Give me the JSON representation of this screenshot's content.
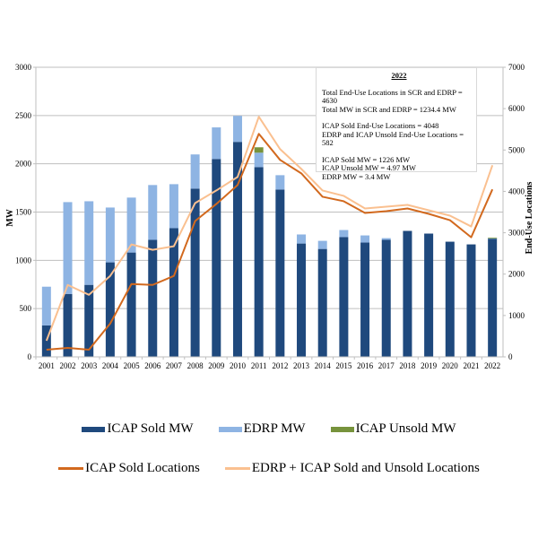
{
  "chart_data": {
    "type": "bar",
    "title": "",
    "categories": [
      "2001",
      "2002",
      "2003",
      "2004",
      "2005",
      "2006",
      "2007",
      "2008",
      "2009",
      "2010",
      "2011",
      "2012",
      "2013",
      "2014",
      "2015",
      "2016",
      "2017",
      "2018",
      "2019",
      "2020",
      "2021",
      "2022"
    ],
    "ylabel": "MW",
    "y2label": "End-Use Locations",
    "ylim": [
      0,
      3000
    ],
    "y2lim": [
      0,
      7000
    ],
    "yticks": [
      0,
      500,
      1000,
      1500,
      2000,
      2500,
      3000
    ],
    "y2ticks": [
      0,
      1000,
      2000,
      3000,
      4000,
      5000,
      6000,
      7000
    ],
    "grid": true,
    "stacked_bars": [
      {
        "name": "ICAP Sold MW",
        "color": "#1f497d",
        "values": [
          326,
          652,
          746,
          979,
          1081,
          1212,
          1333,
          1743,
          2050,
          2227,
          1966,
          1733,
          1174,
          1118,
          1240,
          1184,
          1212,
          1305,
          1277,
          1193,
          1165,
          1226
        ]
      },
      {
        "name": "EDRP MW",
        "color": "#8eb4e3",
        "values": [
          401,
          951,
          866,
          568,
          569,
          568,
          456,
          354,
          327,
          270,
          149,
          149,
          94,
          84,
          74,
          74,
          18,
          0,
          0,
          0,
          0,
          3.4
        ]
      },
      {
        "name": "ICAP Unsold MW",
        "color": "#77933c",
        "values": [
          0,
          0,
          0,
          0,
          0,
          0,
          0,
          0,
          0,
          0,
          56,
          0,
          0,
          0,
          0,
          0,
          0,
          0,
          0,
          0,
          0,
          4.97
        ]
      }
    ],
    "lines": [
      {
        "name": "ICAP Sold Locations",
        "axis": "right",
        "color": "#d2691e",
        "values": [
          174,
          217,
          174,
          804,
          1761,
          1739,
          1957,
          3283,
          3696,
          4152,
          5391,
          4761,
          4435,
          3870,
          3761,
          3478,
          3522,
          3587,
          3457,
          3304,
          2891,
          4048
        ]
      },
      {
        "name": "EDRP + ICAP Sold and Unsold Locations",
        "axis": "right",
        "color": "#fac090",
        "values": [
          391,
          1739,
          1500,
          1957,
          2717,
          2587,
          2674,
          3717,
          4022,
          4348,
          5804,
          5022,
          4543,
          4022,
          3891,
          3587,
          3630,
          3674,
          3543,
          3413,
          3152,
          4630
        ]
      }
    ],
    "legend_position": "bottom",
    "annotation": {
      "title": "2022",
      "lines": [
        "Total End-Use Locations in SCR and EDRP = 4630",
        "Total MW in SCR and EDRP =  1234.4 MW",
        "",
        "ICAP Sold End-Use Locations = 4048",
        "EDRP and ICAP Unsold End-Use Locations = 582",
        "",
        "ICAP Sold MW = 1226 MW",
        "ICAP Unsold MW = 4.97 MW",
        "EDRP MW = 3.4 MW"
      ]
    }
  },
  "legend": {
    "row1": [
      {
        "label": "ICAP Sold MW",
        "color": "#1f497d"
      },
      {
        "label": "EDRP MW",
        "color": "#8eb4e3"
      },
      {
        "label": "ICAP Unsold MW",
        "color": "#77933c"
      }
    ],
    "row2": [
      {
        "label": "ICAP Sold Locations",
        "color": "#d2691e"
      },
      {
        "label": "EDRP + ICAP Sold and Unsold Locations",
        "color": "#fac090"
      }
    ]
  }
}
